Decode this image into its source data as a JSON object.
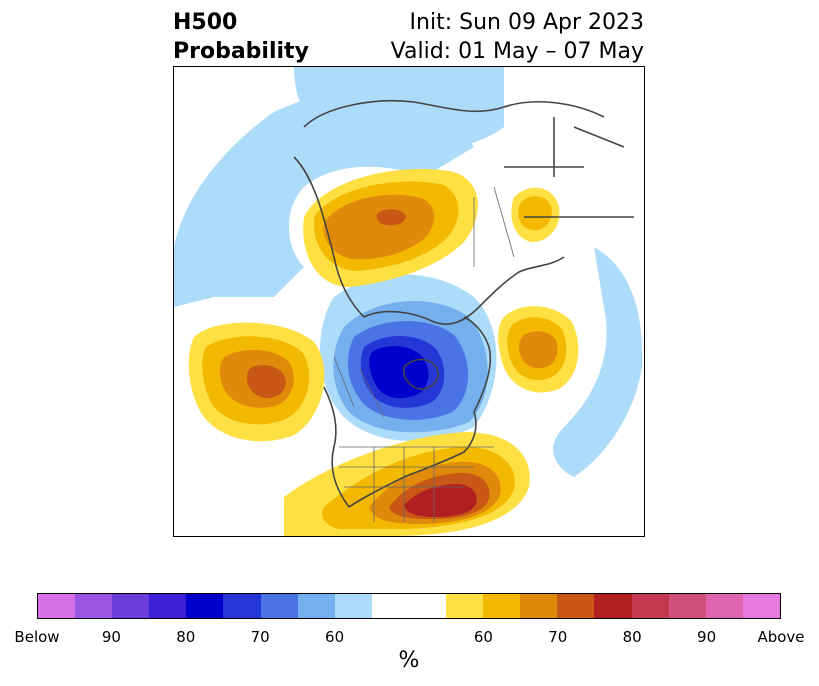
{
  "header": {
    "title_line1": "H500",
    "title_line2": "Probability",
    "init": "Init: Sun 09 Apr 2023",
    "valid": "Valid: 01 May – 07 May"
  },
  "colorbar": {
    "colors": [
      "#d66fe8",
      "#9b55e3",
      "#6b3ddb",
      "#3a1fd5",
      "#0000cd",
      "#2436d6",
      "#4a73e5",
      "#74afee",
      "#acdcfa",
      "#ffffff",
      "#ffffff",
      "#ffe043",
      "#f3b800",
      "#e08a0c",
      "#c95715",
      "#b21f21",
      "#c3374f",
      "#d1507b",
      "#e064ad",
      "#e778de"
    ],
    "ticks": [
      "Below",
      "90",
      "80",
      "70",
      "60",
      "60",
      "70",
      "80",
      "90",
      "Above"
    ],
    "label": "%"
  },
  "map": {
    "colors": {
      "light_blue": "#acdcfa",
      "mid_blue": "#74afee",
      "blue": "#4a73e5",
      "dark_blue": "#2436d6",
      "deep_blue": "#0000cd",
      "yellow": "#ffe043",
      "gold": "#f3b800",
      "orange": "#e08a0c",
      "rust": "#c95715",
      "red": "#b21f21",
      "coast": "#444444"
    }
  }
}
